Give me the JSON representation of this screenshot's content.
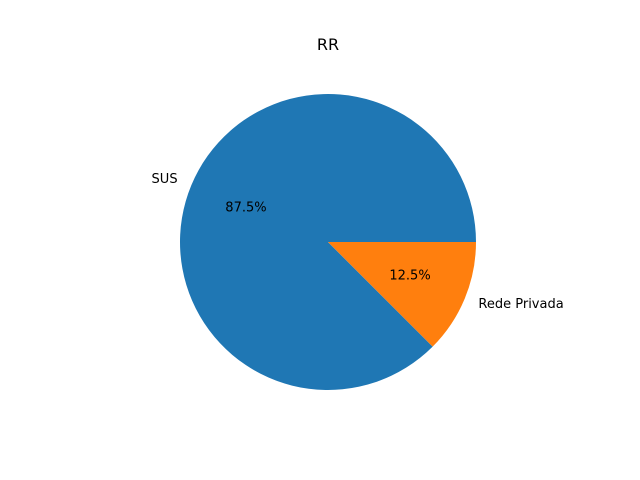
{
  "chart_data": {
    "type": "pie",
    "title": "RR",
    "slices": [
      {
        "label": "SUS",
        "value": 87.5,
        "pct_label": "87.5%",
        "color": "#1f77b4"
      },
      {
        "label": "Rede Privada",
        "value": 12.5,
        "pct_label": "12.5%",
        "color": "#ff7f0e"
      }
    ],
    "start_angle_deg": 0,
    "direction": "counterclockwise"
  }
}
